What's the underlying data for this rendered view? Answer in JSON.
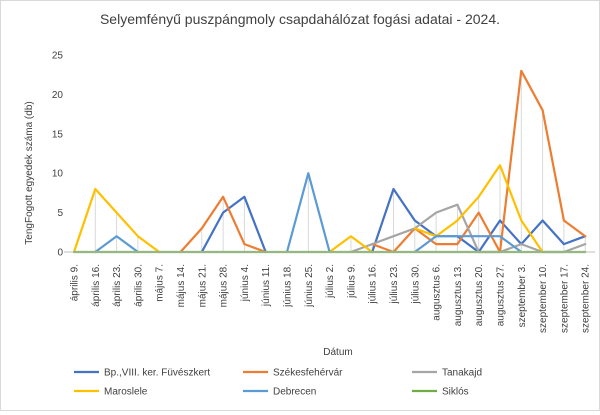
{
  "chart_data": {
    "type": "line",
    "title": "Selyemfényű puszpángmoly csapdahálózat fogási adatai - 2024.",
    "xlabel": "Dátum",
    "ylabel": "TengFogott egyedek száma (db)",
    "ylim": [
      0,
      25
    ],
    "yticks": [
      0,
      5,
      10,
      15,
      20,
      25
    ],
    "grid": "vertical drop lines at each date",
    "legend_position": "bottom",
    "categories": [
      "április 9.",
      "április 16.",
      "április 23.",
      "április 30.",
      "május 7.",
      "május 14.",
      "május 21.",
      "május 28.",
      "június 4.",
      "június 11.",
      "június 18.",
      "június 25.",
      "július 2.",
      "július 9.",
      "július 16.",
      "július 23.",
      "július 30.",
      "augusztus 6.",
      "augusztus 13.",
      "augusztus 20.",
      "augusztus 27.",
      "szeptember 3.",
      "szeptember 10.",
      "szeptember 17.",
      "szeptember 24."
    ],
    "series": [
      {
        "name": "Bp.,VIII. ker. Füvészkert",
        "color": "#4472c4",
        "values": [
          null,
          null,
          null,
          null,
          null,
          null,
          0,
          5,
          7,
          0,
          null,
          null,
          null,
          null,
          0,
          8,
          4,
          2,
          2,
          0,
          4,
          1,
          4,
          1,
          2
        ]
      },
      {
        "name": "Székesfehérvár",
        "color": "#ed7d31",
        "values": [
          null,
          null,
          null,
          null,
          null,
          0,
          3,
          7,
          1,
          0,
          null,
          null,
          null,
          null,
          1,
          0,
          3,
          1,
          1,
          5,
          0,
          23,
          18,
          4,
          2
        ]
      },
      {
        "name": "Tanakajd",
        "color": "#a5a5a5",
        "values": [
          null,
          null,
          null,
          null,
          null,
          null,
          null,
          null,
          null,
          null,
          null,
          null,
          null,
          0,
          1,
          2,
          3,
          5,
          6,
          0,
          0,
          1,
          0,
          0,
          1
        ]
      },
      {
        "name": "Maroslele",
        "color": "#ffc000",
        "values": [
          0,
          8,
          5,
          2,
          0,
          null,
          null,
          null,
          null,
          null,
          null,
          null,
          0,
          2,
          0,
          null,
          3,
          2,
          4,
          7,
          11,
          4,
          0,
          null,
          null
        ]
      },
      {
        "name": "Debrecen",
        "color": "#5b9bd5",
        "values": [
          null,
          0,
          2,
          0,
          null,
          null,
          null,
          null,
          null,
          null,
          0,
          10,
          0,
          null,
          null,
          null,
          0,
          2,
          2,
          2,
          2,
          0,
          null,
          null,
          null
        ]
      },
      {
        "name": "Siklós",
        "color": "#70ad47",
        "values": [
          0,
          0,
          0,
          0,
          0,
          0,
          0,
          0,
          0,
          0,
          0,
          0,
          0,
          0,
          0,
          0,
          0,
          0,
          0,
          0,
          0,
          0,
          0,
          0,
          0
        ]
      }
    ]
  }
}
